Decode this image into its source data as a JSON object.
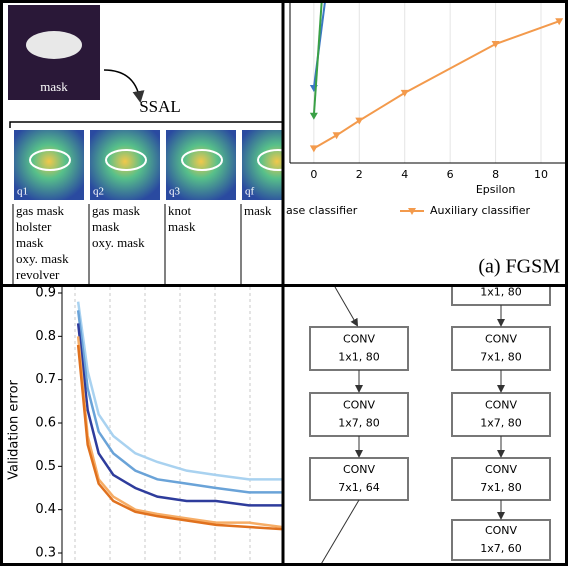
{
  "ssal": {
    "image_label": "mask",
    "title": "SSAL",
    "columns": [
      {
        "tag": "q1",
        "words": [
          "gas mask",
          "holster",
          "mask",
          "oxy. mask",
          "revolver"
        ]
      },
      {
        "tag": "q2",
        "words": [
          "gas mask",
          "mask",
          "oxy. mask"
        ]
      },
      {
        "tag": "q3",
        "words": [
          "knot",
          "mask"
        ]
      },
      {
        "tag": "qf",
        "words": [
          "mask"
        ]
      }
    ]
  },
  "fgsm": {
    "type": "line",
    "xlabel": "Epsilon",
    "caption": "(a) FGSM",
    "xlim": [
      -1.05,
      11.1
    ],
    "ylim": [
      0,
      1
    ],
    "xticks": [
      0,
      2,
      4,
      6,
      8,
      10
    ],
    "grid": true,
    "series": [
      {
        "name": "ase classifier",
        "color": "#3b78c4",
        "x": [
          0,
          0.5
        ],
        "values": [
          0.46,
          1.0
        ]
      },
      {
        "color": "#3aa046",
        "x": [
          0,
          0.35
        ],
        "values": [
          0.29,
          1.0
        ]
      },
      {
        "name": "Auxiliary classifier",
        "color": "#f39a4c",
        "x": [
          0,
          1,
          2,
          4,
          8,
          10.8
        ],
        "values": [
          0.09,
          0.17,
          0.26,
          0.43,
          0.73,
          0.87
        ]
      }
    ]
  },
  "validation": {
    "type": "line",
    "ylabel": "Validation error",
    "xlim": [
      0,
      6
    ],
    "ylim": [
      0.3,
      0.9
    ],
    "yticks": [
      0.3,
      0.4,
      0.5,
      0.6,
      0.7,
      0.8,
      0.9
    ],
    "grid": true,
    "series": [
      {
        "color": "#a9d2f0",
        "x": [
          0.44,
          0.7,
          1.0,
          1.4,
          2.0,
          2.6,
          3.4,
          4.2,
          5.1,
          6
        ],
        "values": [
          0.88,
          0.72,
          0.62,
          0.57,
          0.53,
          0.51,
          0.49,
          0.48,
          0.47,
          0.47
        ]
      },
      {
        "color": "#6aa3d8",
        "x": [
          0.44,
          0.7,
          1.0,
          1.4,
          2.0,
          2.6,
          3.4,
          4.2,
          5.1,
          6
        ],
        "values": [
          0.86,
          0.68,
          0.58,
          0.53,
          0.49,
          0.47,
          0.46,
          0.45,
          0.44,
          0.44
        ]
      },
      {
        "color": "#2e3c9c",
        "x": [
          0.44,
          0.7,
          1.0,
          1.4,
          2.0,
          2.6,
          3.4,
          4.2,
          5.1,
          6
        ],
        "values": [
          0.83,
          0.63,
          0.53,
          0.48,
          0.45,
          0.43,
          0.42,
          0.42,
          0.41,
          0.41
        ]
      },
      {
        "color": "#f6ad66",
        "x": [
          0.44,
          0.7,
          1.0,
          1.4,
          2.0,
          2.6,
          3.4,
          4.2,
          5.1,
          6
        ],
        "values": [
          0.8,
          0.57,
          0.47,
          0.43,
          0.4,
          0.39,
          0.38,
          0.37,
          0.37,
          0.36
        ]
      },
      {
        "color": "#e0711e",
        "x": [
          0.44,
          0.7,
          1.0,
          1.4,
          2.0,
          2.6,
          3.4,
          4.2,
          5.1,
          6
        ],
        "values": [
          0.78,
          0.55,
          0.46,
          0.42,
          0.395,
          0.385,
          0.375,
          0.365,
          0.36,
          0.355
        ]
      }
    ]
  },
  "diagram": {
    "left": [
      [
        "CONV",
        "1x1, 80"
      ],
      [
        "CONV",
        "1x7, 80"
      ],
      [
        "CONV",
        "7x1, 64"
      ]
    ],
    "right": [
      [
        "1x1, 80"
      ],
      [
        "CONV",
        "7x1, 80"
      ],
      [
        "CONV",
        "1x7, 80"
      ],
      [
        "CONV",
        "7x1, 80"
      ],
      [
        "CONV",
        "1x7, 60"
      ]
    ]
  }
}
